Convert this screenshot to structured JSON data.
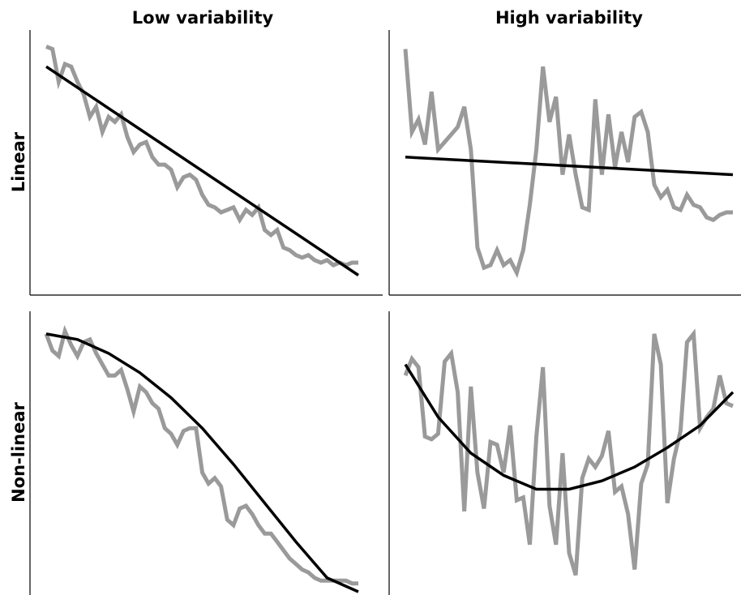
{
  "chart_data": [
    {
      "type": "line",
      "title": "Low variability",
      "row_label": "Linear",
      "panel": "top-left",
      "axes_visible": [
        "left",
        "bottom"
      ],
      "ticks": "none",
      "xlim": [
        0,
        1
      ],
      "ylim": [
        0,
        1
      ],
      "series": [
        {
          "role": "data",
          "color": "#9a9a9a",
          "x": [
            0.0,
            0.02,
            0.04,
            0.06,
            0.08,
            0.1,
            0.12,
            0.14,
            0.16,
            0.18,
            0.2,
            0.22,
            0.24,
            0.26,
            0.28,
            0.3,
            0.32,
            0.34,
            0.36,
            0.38,
            0.4,
            0.42,
            0.44,
            0.46,
            0.48,
            0.5,
            0.52,
            0.54,
            0.56,
            0.58,
            0.6,
            0.62,
            0.64,
            0.66,
            0.68,
            0.7,
            0.72,
            0.74,
            0.76,
            0.78,
            0.8,
            0.82,
            0.84,
            0.86,
            0.88,
            0.9,
            0.92,
            0.94,
            0.96,
            0.98,
            1.0
          ],
          "y": [
            0.96,
            0.95,
            0.82,
            0.89,
            0.88,
            0.82,
            0.77,
            0.68,
            0.72,
            0.62,
            0.68,
            0.66,
            0.69,
            0.6,
            0.54,
            0.57,
            0.58,
            0.52,
            0.49,
            0.49,
            0.47,
            0.4,
            0.44,
            0.45,
            0.43,
            0.37,
            0.33,
            0.32,
            0.3,
            0.31,
            0.32,
            0.27,
            0.31,
            0.29,
            0.32,
            0.23,
            0.21,
            0.23,
            0.16,
            0.15,
            0.13,
            0.12,
            0.13,
            0.11,
            0.1,
            0.11,
            0.09,
            0.1,
            0.09,
            0.1,
            0.1
          ]
        },
        {
          "role": "trend",
          "color": "#000000",
          "x": [
            0,
            1
          ],
          "y": [
            0.88,
            0.05
          ]
        }
      ]
    },
    {
      "type": "line",
      "title": "High variability",
      "row_label": "Linear",
      "panel": "top-right",
      "axes_visible": [
        "left",
        "bottom"
      ],
      "ticks": "none",
      "xlim": [
        0,
        1
      ],
      "ylim": [
        0,
        1
      ],
      "series": [
        {
          "role": "data",
          "color": "#9a9a9a",
          "x": [
            0.0,
            0.02,
            0.04,
            0.06,
            0.08,
            0.1,
            0.12,
            0.14,
            0.16,
            0.18,
            0.2,
            0.22,
            0.24,
            0.26,
            0.28,
            0.3,
            0.32,
            0.34,
            0.36,
            0.38,
            0.4,
            0.42,
            0.44,
            0.46,
            0.48,
            0.5,
            0.52,
            0.54,
            0.56,
            0.58,
            0.6,
            0.62,
            0.64,
            0.66,
            0.68,
            0.7,
            0.72,
            0.74,
            0.76,
            0.78,
            0.8,
            0.82,
            0.84,
            0.86,
            0.88,
            0.9,
            0.92,
            0.94,
            0.96,
            0.98,
            1.0
          ],
          "y": [
            0.95,
            0.62,
            0.67,
            0.57,
            0.78,
            0.55,
            0.58,
            0.61,
            0.64,
            0.72,
            0.55,
            0.16,
            0.08,
            0.09,
            0.15,
            0.09,
            0.11,
            0.06,
            0.15,
            0.33,
            0.55,
            0.88,
            0.66,
            0.76,
            0.45,
            0.61,
            0.45,
            0.32,
            0.31,
            0.75,
            0.45,
            0.69,
            0.48,
            0.62,
            0.5,
            0.68,
            0.7,
            0.62,
            0.41,
            0.36,
            0.39,
            0.32,
            0.31,
            0.37,
            0.33,
            0.32,
            0.28,
            0.27,
            0.29,
            0.3,
            0.3
          ]
        },
        {
          "role": "trend",
          "color": "#000000",
          "x": [
            0,
            1
          ],
          "y": [
            0.52,
            0.45
          ]
        }
      ]
    },
    {
      "type": "line",
      "title": "",
      "row_label": "Non-linear",
      "panel": "bottom-left",
      "axes_visible": [
        "left"
      ],
      "ticks": "none",
      "xlim": [
        0,
        1
      ],
      "ylim": [
        0,
        1
      ],
      "series": [
        {
          "role": "data",
          "color": "#9a9a9a",
          "x": [
            0.0,
            0.02,
            0.04,
            0.06,
            0.08,
            0.1,
            0.12,
            0.14,
            0.16,
            0.18,
            0.2,
            0.22,
            0.24,
            0.26,
            0.28,
            0.3,
            0.32,
            0.34,
            0.36,
            0.38,
            0.4,
            0.42,
            0.44,
            0.46,
            0.48,
            0.5,
            0.52,
            0.54,
            0.56,
            0.58,
            0.6,
            0.62,
            0.64,
            0.66,
            0.68,
            0.7,
            0.72,
            0.74,
            0.76,
            0.78,
            0.8,
            0.82,
            0.84,
            0.86,
            0.88,
            0.9,
            0.92,
            0.94,
            0.96,
            0.98,
            1.0
          ],
          "y": [
            0.93,
            0.87,
            0.85,
            0.94,
            0.89,
            0.85,
            0.9,
            0.91,
            0.86,
            0.82,
            0.78,
            0.78,
            0.8,
            0.73,
            0.65,
            0.74,
            0.72,
            0.68,
            0.66,
            0.59,
            0.57,
            0.53,
            0.58,
            0.59,
            0.59,
            0.43,
            0.39,
            0.41,
            0.38,
            0.26,
            0.24,
            0.3,
            0.31,
            0.28,
            0.24,
            0.21,
            0.21,
            0.18,
            0.15,
            0.12,
            0.1,
            0.08,
            0.07,
            0.05,
            0.04,
            0.04,
            0.04,
            0.04,
            0.04,
            0.03,
            0.03
          ]
        },
        {
          "role": "trend",
          "color": "#000000",
          "x": [
            0.0,
            0.1,
            0.2,
            0.3,
            0.4,
            0.5,
            0.6,
            0.7,
            0.8,
            0.9,
            1.0
          ],
          "y": [
            0.93,
            0.91,
            0.86,
            0.79,
            0.7,
            0.59,
            0.46,
            0.32,
            0.18,
            0.05,
            0.0
          ]
        }
      ]
    },
    {
      "type": "line",
      "title": "",
      "row_label": "Non-linear",
      "panel": "bottom-right",
      "axes_visible": [
        "left"
      ],
      "ticks": "none",
      "xlim": [
        0,
        1
      ],
      "ylim": [
        0,
        1
      ],
      "series": [
        {
          "role": "data",
          "color": "#9a9a9a",
          "x": [
            0.0,
            0.02,
            0.04,
            0.06,
            0.08,
            0.1,
            0.12,
            0.14,
            0.16,
            0.18,
            0.2,
            0.22,
            0.24,
            0.26,
            0.28,
            0.3,
            0.32,
            0.34,
            0.36,
            0.38,
            0.4,
            0.42,
            0.44,
            0.46,
            0.48,
            0.5,
            0.52,
            0.54,
            0.56,
            0.58,
            0.6,
            0.62,
            0.64,
            0.66,
            0.68,
            0.7,
            0.72,
            0.74,
            0.76,
            0.78,
            0.8,
            0.82,
            0.84,
            0.86,
            0.88,
            0.9,
            0.92,
            0.94,
            0.96,
            0.98,
            1.0
          ],
          "y": [
            0.78,
            0.84,
            0.81,
            0.56,
            0.55,
            0.57,
            0.83,
            0.86,
            0.72,
            0.29,
            0.74,
            0.43,
            0.3,
            0.54,
            0.53,
            0.43,
            0.6,
            0.33,
            0.34,
            0.17,
            0.56,
            0.81,
            0.31,
            0.17,
            0.5,
            0.14,
            0.06,
            0.41,
            0.48,
            0.45,
            0.49,
            0.58,
            0.36,
            0.38,
            0.28,
            0.08,
            0.39,
            0.46,
            0.93,
            0.82,
            0.32,
            0.48,
            0.58,
            0.9,
            0.93,
            0.59,
            0.63,
            0.66,
            0.78,
            0.68,
            0.67
          ]
        },
        {
          "role": "trend",
          "color": "#000000",
          "x": [
            0.0,
            0.1,
            0.2,
            0.3,
            0.4,
            0.5,
            0.6,
            0.7,
            0.8,
            0.9,
            1.0
          ],
          "y": [
            0.82,
            0.63,
            0.5,
            0.42,
            0.37,
            0.37,
            0.4,
            0.45,
            0.52,
            0.6,
            0.72
          ]
        }
      ]
    }
  ]
}
